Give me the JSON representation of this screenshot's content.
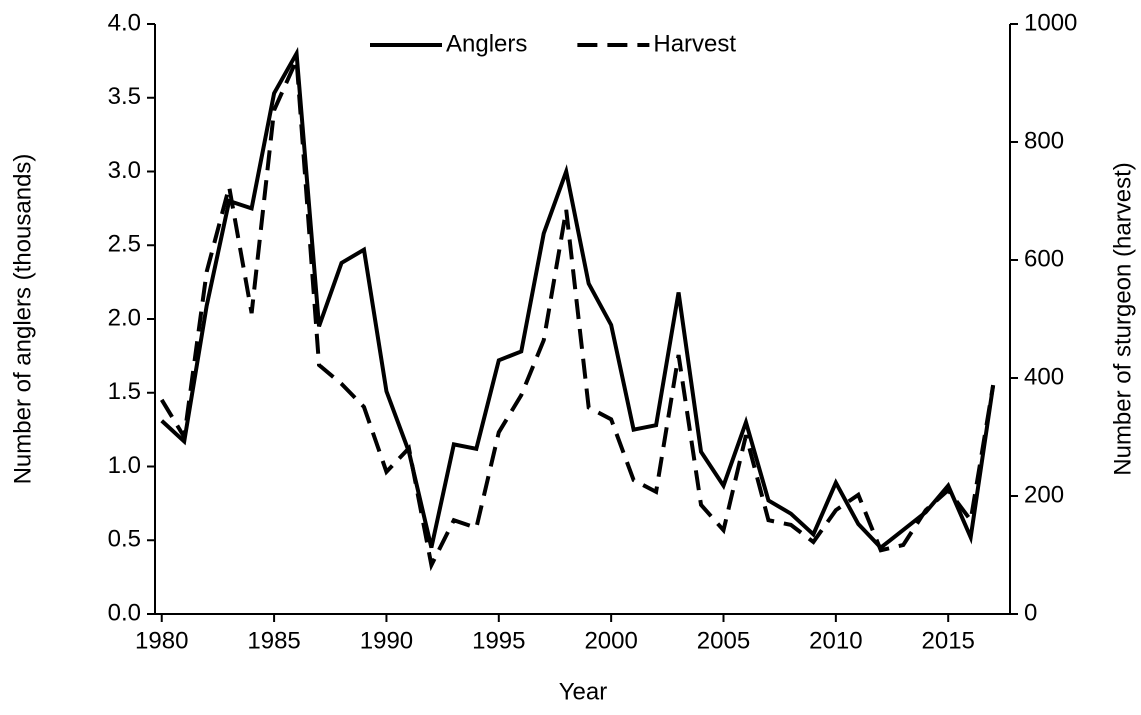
{
  "chart_data": {
    "type": "line",
    "x_label": "Year",
    "y_label": "Number of anglers (thousands)",
    "y2_label": "Number of sturgeon (harvest)",
    "x": [
      1980,
      1981,
      1982,
      1983,
      1984,
      1985,
      1986,
      1987,
      1988,
      1989,
      1990,
      1991,
      1992,
      1993,
      1994,
      1995,
      1996,
      1997,
      1998,
      1999,
      2000,
      2001,
      2002,
      2003,
      2004,
      2005,
      2006,
      2007,
      2008,
      2009,
      2010,
      2011,
      2012,
      2013,
      2014,
      2015,
      2016,
      2017
    ],
    "series": [
      {
        "name": "Anglers",
        "color": "#000000",
        "line_style": "solid",
        "values": [
          1.31,
          1.17,
          2.09,
          2.8,
          2.75,
          3.53,
          3.8,
          1.95,
          2.38,
          2.47,
          1.51,
          1.1,
          0.45,
          1.15,
          1.12,
          1.72,
          1.78,
          2.58,
          3.0,
          2.24,
          1.96,
          1.25,
          1.28,
          2.18,
          1.1,
          0.87,
          1.3,
          0.77,
          0.68,
          0.54,
          0.89,
          0.61,
          0.45,
          0.57,
          0.69,
          0.87,
          0.52,
          1.55
        ]
      },
      {
        "name": "Harvest",
        "color": "#000000",
        "line_style": "dashed",
        "axis": "y2",
        "values": [
          363,
          300,
          580,
          724,
          510,
          854,
          939,
          422,
          390,
          351,
          241,
          281,
          83,
          159,
          146,
          308,
          371,
          464,
          685,
          350,
          330,
          227,
          207,
          439,
          185,
          142,
          303,
          159,
          151,
          122,
          176,
          202,
          108,
          117,
          176,
          210,
          159,
          388
        ]
      }
    ],
    "xlim": [
      1979.7,
      2017.75
    ],
    "xticks": [
      1980,
      1985,
      1990,
      1995,
      2000,
      2005,
      2010,
      2015
    ],
    "ylim": [
      0,
      4
    ],
    "yticks": [
      {
        "value": 0,
        "label": "0.0"
      },
      0.5,
      {
        "value": 1,
        "label": "1.0"
      },
      1.5,
      {
        "value": 2,
        "label": "2.0"
      },
      2.5,
      {
        "value": 3,
        "label": "3.0"
      },
      3.5,
      {
        "value": 4,
        "label": "4.0"
      }
    ],
    "y2lim": [
      0,
      1000
    ],
    "y2ticks": [
      0,
      200,
      400,
      600,
      800,
      1000
    ],
    "legend": "top"
  }
}
